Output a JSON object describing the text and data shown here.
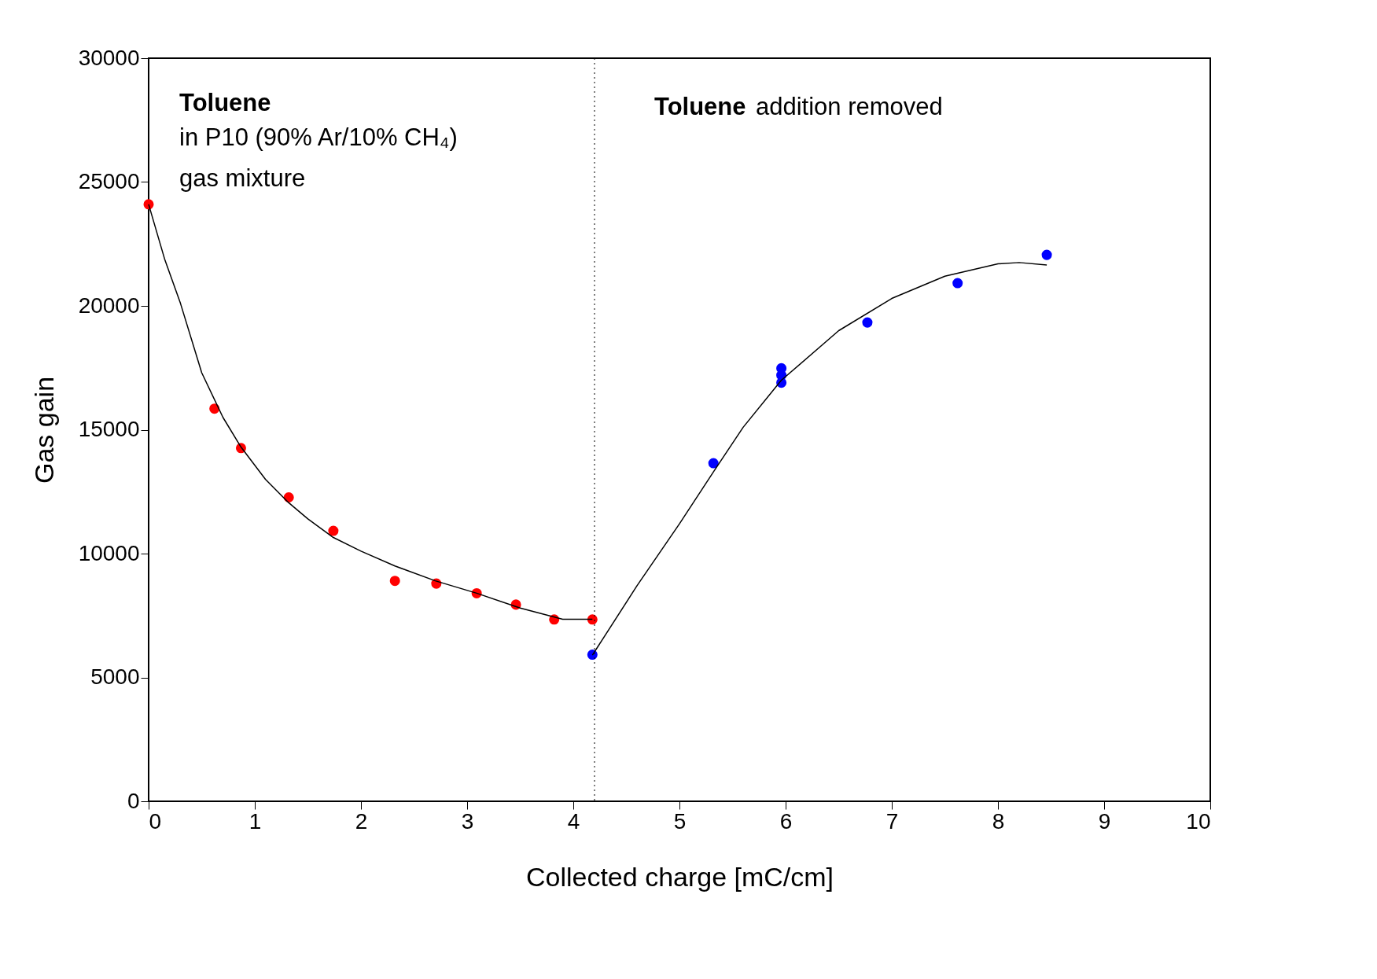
{
  "chart_data": {
    "type": "scatter",
    "xlabel": "Collected charge [mC/cm]",
    "ylabel": "Gas gain",
    "xlim": [
      0,
      10
    ],
    "xticks": [
      0,
      1,
      2,
      3,
      4,
      5,
      6,
      7,
      8,
      9,
      10
    ],
    "ylim": [
      0,
      30000
    ],
    "yticks": [
      0,
      5000,
      10000,
      15000,
      20000,
      25000,
      30000
    ],
    "grid": false,
    "legend": false,
    "series": [
      {
        "marker": "circle",
        "color": "#ff0000",
        "x": [
          0,
          0.62,
          0.87,
          1.32,
          1.74,
          2.32,
          2.71,
          3.09,
          3.46,
          3.82,
          4.18
        ],
        "values": [
          24100,
          15850,
          14260,
          12270,
          10920,
          8900,
          8790,
          8400,
          7940,
          7340,
          7340
        ]
      },
      {
        "marker": "circle",
        "color": "#0000ff",
        "x": [
          4.18,
          5.32,
          5.96,
          5.96,
          5.96,
          6.77,
          7.62,
          8.46
        ],
        "values": [
          5920,
          13650,
          17480,
          17200,
          16900,
          19330,
          20920,
          22060
        ]
      },
      {
        "type": "line",
        "color": "#000000",
        "x": [
          0,
          0.15,
          0.3,
          0.5,
          0.7,
          0.87,
          1.1,
          1.32,
          1.5,
          1.74,
          2.0,
          2.32,
          2.7,
          3.09,
          3.5,
          3.9,
          4.18
        ],
        "values": [
          24100,
          21900,
          20100,
          17300,
          15500,
          14300,
          13000,
          12050,
          11400,
          10650,
          10100,
          9500,
          8900,
          8400,
          7800,
          7350,
          7350
        ]
      },
      {
        "type": "line",
        "color": "#000000",
        "x": [
          4.18,
          4.6,
          5.0,
          5.32,
          5.6,
          5.96,
          6.5,
          7.0,
          7.5,
          8.0,
          8.2,
          8.46
        ],
        "values": [
          5900,
          8700,
          11200,
          13300,
          15100,
          17000,
          19000,
          20300,
          21200,
          21700,
          21750,
          21650
        ]
      }
    ],
    "ref_lines": [
      {
        "axis": "x",
        "value": 4.2,
        "color": "#000000",
        "line_style": "dotted"
      }
    ],
    "annotations": [
      "Toluene",
      "in P10 (90% Ar/10% CH₄)",
      "gas mixture",
      "Toluene",
      "addition removed"
    ]
  }
}
